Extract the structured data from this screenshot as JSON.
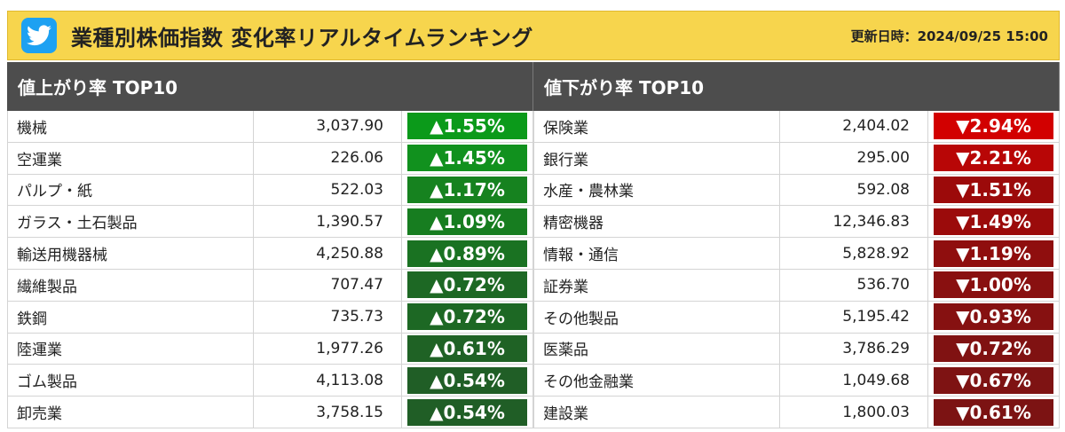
{
  "header": {
    "title": "業種別株価指数 変化率リアルタイムランキング",
    "updated": "更新日時：2024/09/25 15:00",
    "share_icon": "twitter-bird-icon",
    "colors": {
      "bar": "#f7d54d",
      "twitter": "#1da1f2"
    }
  },
  "gainers": {
    "heading": "値上がり率 TOP10",
    "rows": [
      {
        "name": "機械",
        "value": "3,037.90",
        "change": "▲1.55%",
        "color": "#0b9a1a"
      },
      {
        "name": "空運業",
        "value": "226.06",
        "change": "▲1.45%",
        "color": "#11911e"
      },
      {
        "name": "パルプ・紙",
        "value": "522.03",
        "change": "▲1.17%",
        "color": "#16821f"
      },
      {
        "name": "ガラス・土石製品",
        "value": "1,390.57",
        "change": "▲1.09%",
        "color": "#177d20"
      },
      {
        "name": "輸送用機器械",
        "value": "4,250.88",
        "change": "▲0.89%",
        "color": "#1a7222"
      },
      {
        "name": "繊維製品",
        "value": "707.47",
        "change": "▲0.72%",
        "color": "#1d6824"
      },
      {
        "name": "鉄鋼",
        "value": "735.73",
        "change": "▲0.72%",
        "color": "#1d6824"
      },
      {
        "name": "陸運業",
        "value": "1,977.26",
        "change": "▲0.61%",
        "color": "#1f6225"
      },
      {
        "name": "ゴム製品",
        "value": "4,113.08",
        "change": "▲0.54%",
        "color": "#205e26"
      },
      {
        "name": "卸売業",
        "value": "3,758.15",
        "change": "▲0.54%",
        "color": "#205e26"
      }
    ]
  },
  "losers": {
    "heading": "値下がり率 TOP10",
    "rows": [
      {
        "name": "保険業",
        "value": "2,404.02",
        "change": "▼2.94%",
        "color": "#d20000"
      },
      {
        "name": "銀行業",
        "value": "295.00",
        "change": "▼2.21%",
        "color": "#b80606"
      },
      {
        "name": "水産・農林業",
        "value": "592.08",
        "change": "▼1.51%",
        "color": "#9c0a0a"
      },
      {
        "name": "精密機器",
        "value": "12,346.83",
        "change": "▼1.49%",
        "color": "#9b0b0b"
      },
      {
        "name": "情報・通信",
        "value": "5,828.92",
        "change": "▼1.19%",
        "color": "#8f0e0e"
      },
      {
        "name": "証券業",
        "value": "536.70",
        "change": "▼1.00%",
        "color": "#891010"
      },
      {
        "name": "その他製品",
        "value": "5,195.42",
        "change": "▼0.93%",
        "color": "#861111"
      },
      {
        "name": "医薬品",
        "value": "3,786.29",
        "change": "▼0.72%",
        "color": "#801212"
      },
      {
        "name": "その他金融業",
        "value": "1,049.68",
        "change": "▼0.67%",
        "color": "#7e1313"
      },
      {
        "name": "建設業",
        "value": "1,800.03",
        "change": "▼0.61%",
        "color": "#7c1313"
      }
    ]
  }
}
